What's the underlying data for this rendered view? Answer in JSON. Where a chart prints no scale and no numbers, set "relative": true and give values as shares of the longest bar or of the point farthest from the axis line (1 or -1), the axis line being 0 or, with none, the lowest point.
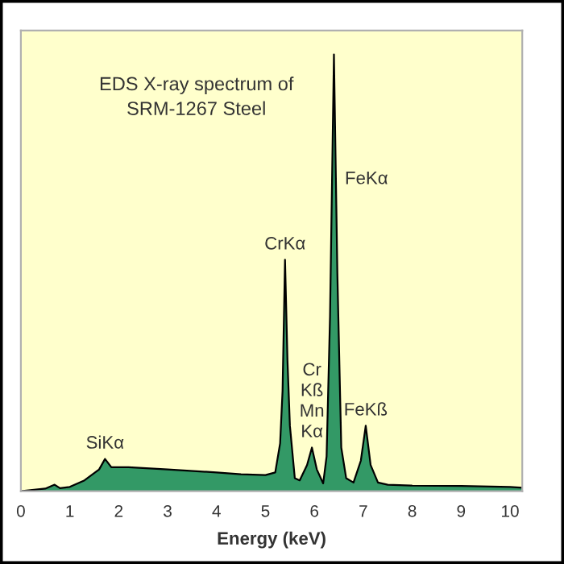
{
  "chart_data": {
    "type": "area",
    "title": "EDS X-ray spectrum of\nSRM-1267 Steel",
    "xlabel": "Energy (keV)",
    "relative": true,
    "x": [
      0,
      0.5,
      0.69,
      0.8,
      1.0,
      1.3,
      1.6,
      1.72,
      1.85,
      2.2,
      3.0,
      4.0,
      4.5,
      5.0,
      5.2,
      5.3,
      5.35,
      5.4,
      5.45,
      5.5,
      5.6,
      5.7,
      5.85,
      5.95,
      6.05,
      6.18,
      6.25,
      6.32,
      6.4,
      6.47,
      6.55,
      6.65,
      6.8,
      6.95,
      7.05,
      7.15,
      7.3,
      7.5,
      8.0,
      9.0,
      10.0,
      10.25
    ],
    "series": [
      {
        "color": "#339966",
        "values": [
          0,
          0.006,
          0.015,
          0.007,
          0.01,
          0.025,
          0.05,
          0.074,
          0.055,
          0.055,
          0.05,
          0.043,
          0.039,
          0.037,
          0.043,
          0.11,
          0.23,
          0.53,
          0.3,
          0.15,
          0.03,
          0.025,
          0.06,
          0.1,
          0.05,
          0.018,
          0.08,
          0.4,
          1.0,
          0.5,
          0.1,
          0.03,
          0.02,
          0.07,
          0.15,
          0.06,
          0.02,
          0.015,
          0.013,
          0.012,
          0.01,
          0.008
        ]
      }
    ],
    "xlim": [
      0,
      10.25
    ],
    "xticks": [
      0,
      1,
      2,
      3,
      4,
      5,
      6,
      7,
      8,
      9,
      10
    ],
    "annotations": [
      {
        "text": "SiKα",
        "x": 1.72,
        "y": 0.074
      },
      {
        "text": "CrKα",
        "x": 5.4,
        "y": 0.53
      },
      {
        "text": "Cr\nKß\nMn\nKα",
        "x": 5.95,
        "y": 0.1
      },
      {
        "text": "FeKα",
        "x": 6.44,
        "y": 0.714
      },
      {
        "text": "FeKß",
        "x": 7.05,
        "y": 0.15
      }
    ],
    "grid": false
  }
}
